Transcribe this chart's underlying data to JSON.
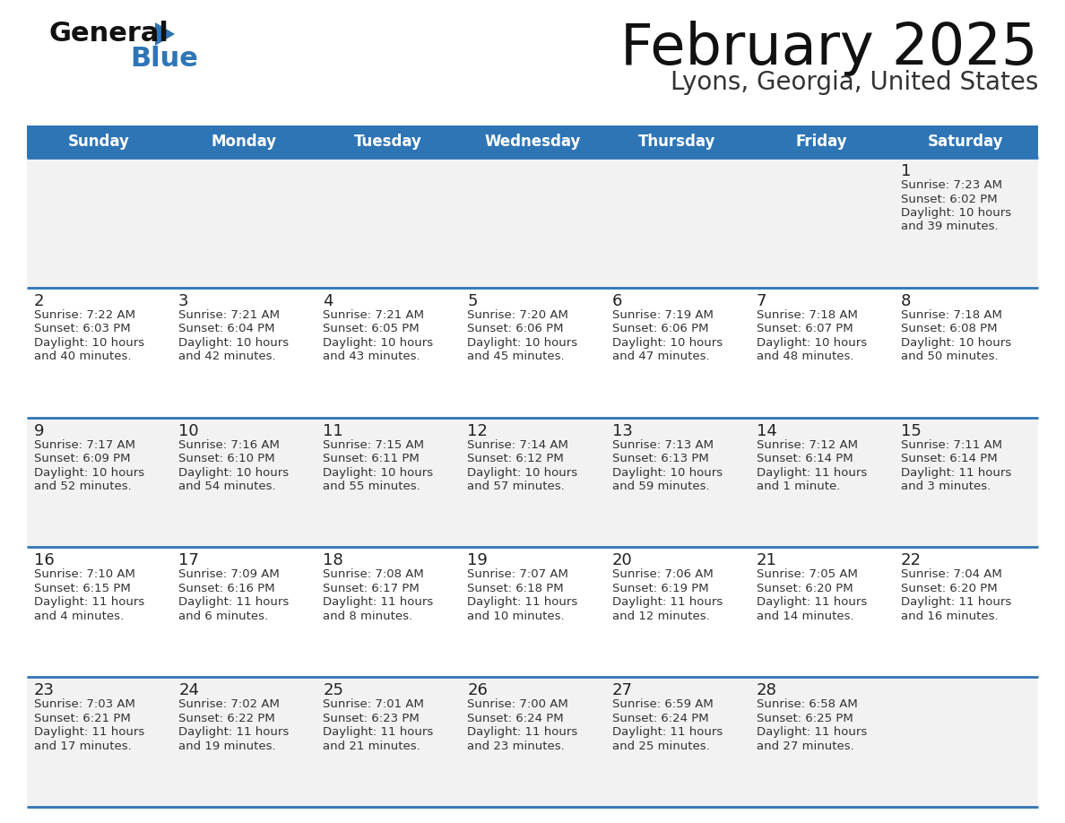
{
  "title": "February 2025",
  "subtitle": "Lyons, Georgia, United States",
  "days_of_week": [
    "Sunday",
    "Monday",
    "Tuesday",
    "Wednesday",
    "Thursday",
    "Friday",
    "Saturday"
  ],
  "header_bg": "#2e75b6",
  "header_text": "#ffffff",
  "row_bg_light": "#f2f2f2",
  "row_bg_white": "#ffffff",
  "separator_color": "#2e75b6",
  "day_number_color": "#222222",
  "cell_text_color": "#333333",
  "title_color": "#111111",
  "subtitle_color": "#333333",
  "logo_text_color": "#111111",
  "logo_blue_color": "#2e75b6",
  "calendar": [
    [
      null,
      null,
      null,
      null,
      null,
      null,
      {
        "day": "1",
        "sunrise": "7:23 AM",
        "sunset": "6:02 PM",
        "daylight_line1": "Daylight: 10 hours",
        "daylight_line2": "and 39 minutes."
      }
    ],
    [
      {
        "day": "2",
        "sunrise": "7:22 AM",
        "sunset": "6:03 PM",
        "daylight_line1": "Daylight: 10 hours",
        "daylight_line2": "and 40 minutes."
      },
      {
        "day": "3",
        "sunrise": "7:21 AM",
        "sunset": "6:04 PM",
        "daylight_line1": "Daylight: 10 hours",
        "daylight_line2": "and 42 minutes."
      },
      {
        "day": "4",
        "sunrise": "7:21 AM",
        "sunset": "6:05 PM",
        "daylight_line1": "Daylight: 10 hours",
        "daylight_line2": "and 43 minutes."
      },
      {
        "day": "5",
        "sunrise": "7:20 AM",
        "sunset": "6:06 PM",
        "daylight_line1": "Daylight: 10 hours",
        "daylight_line2": "and 45 minutes."
      },
      {
        "day": "6",
        "sunrise": "7:19 AM",
        "sunset": "6:06 PM",
        "daylight_line1": "Daylight: 10 hours",
        "daylight_line2": "and 47 minutes."
      },
      {
        "day": "7",
        "sunrise": "7:18 AM",
        "sunset": "6:07 PM",
        "daylight_line1": "Daylight: 10 hours",
        "daylight_line2": "and 48 minutes."
      },
      {
        "day": "8",
        "sunrise": "7:18 AM",
        "sunset": "6:08 PM",
        "daylight_line1": "Daylight: 10 hours",
        "daylight_line2": "and 50 minutes."
      }
    ],
    [
      {
        "day": "9",
        "sunrise": "7:17 AM",
        "sunset": "6:09 PM",
        "daylight_line1": "Daylight: 10 hours",
        "daylight_line2": "and 52 minutes."
      },
      {
        "day": "10",
        "sunrise": "7:16 AM",
        "sunset": "6:10 PM",
        "daylight_line1": "Daylight: 10 hours",
        "daylight_line2": "and 54 minutes."
      },
      {
        "day": "11",
        "sunrise": "7:15 AM",
        "sunset": "6:11 PM",
        "daylight_line1": "Daylight: 10 hours",
        "daylight_line2": "and 55 minutes."
      },
      {
        "day": "12",
        "sunrise": "7:14 AM",
        "sunset": "6:12 PM",
        "daylight_line1": "Daylight: 10 hours",
        "daylight_line2": "and 57 minutes."
      },
      {
        "day": "13",
        "sunrise": "7:13 AM",
        "sunset": "6:13 PM",
        "daylight_line1": "Daylight: 10 hours",
        "daylight_line2": "and 59 minutes."
      },
      {
        "day": "14",
        "sunrise": "7:12 AM",
        "sunset": "6:14 PM",
        "daylight_line1": "Daylight: 11 hours",
        "daylight_line2": "and 1 minute."
      },
      {
        "day": "15",
        "sunrise": "7:11 AM",
        "sunset": "6:14 PM",
        "daylight_line1": "Daylight: 11 hours",
        "daylight_line2": "and 3 minutes."
      }
    ],
    [
      {
        "day": "16",
        "sunrise": "7:10 AM",
        "sunset": "6:15 PM",
        "daylight_line1": "Daylight: 11 hours",
        "daylight_line2": "and 4 minutes."
      },
      {
        "day": "17",
        "sunrise": "7:09 AM",
        "sunset": "6:16 PM",
        "daylight_line1": "Daylight: 11 hours",
        "daylight_line2": "and 6 minutes."
      },
      {
        "day": "18",
        "sunrise": "7:08 AM",
        "sunset": "6:17 PM",
        "daylight_line1": "Daylight: 11 hours",
        "daylight_line2": "and 8 minutes."
      },
      {
        "day": "19",
        "sunrise": "7:07 AM",
        "sunset": "6:18 PM",
        "daylight_line1": "Daylight: 11 hours",
        "daylight_line2": "and 10 minutes."
      },
      {
        "day": "20",
        "sunrise": "7:06 AM",
        "sunset": "6:19 PM",
        "daylight_line1": "Daylight: 11 hours",
        "daylight_line2": "and 12 minutes."
      },
      {
        "day": "21",
        "sunrise": "7:05 AM",
        "sunset": "6:20 PM",
        "daylight_line1": "Daylight: 11 hours",
        "daylight_line2": "and 14 minutes."
      },
      {
        "day": "22",
        "sunrise": "7:04 AM",
        "sunset": "6:20 PM",
        "daylight_line1": "Daylight: 11 hours",
        "daylight_line2": "and 16 minutes."
      }
    ],
    [
      {
        "day": "23",
        "sunrise": "7:03 AM",
        "sunset": "6:21 PM",
        "daylight_line1": "Daylight: 11 hours",
        "daylight_line2": "and 17 minutes."
      },
      {
        "day": "24",
        "sunrise": "7:02 AM",
        "sunset": "6:22 PM",
        "daylight_line1": "Daylight: 11 hours",
        "daylight_line2": "and 19 minutes."
      },
      {
        "day": "25",
        "sunrise": "7:01 AM",
        "sunset": "6:23 PM",
        "daylight_line1": "Daylight: 11 hours",
        "daylight_line2": "and 21 minutes."
      },
      {
        "day": "26",
        "sunrise": "7:00 AM",
        "sunset": "6:24 PM",
        "daylight_line1": "Daylight: 11 hours",
        "daylight_line2": "and 23 minutes."
      },
      {
        "day": "27",
        "sunrise": "6:59 AM",
        "sunset": "6:24 PM",
        "daylight_line1": "Daylight: 11 hours",
        "daylight_line2": "and 25 minutes."
      },
      {
        "day": "28",
        "sunrise": "6:58 AM",
        "sunset": "6:25 PM",
        "daylight_line1": "Daylight: 11 hours",
        "daylight_line2": "and 27 minutes."
      },
      null
    ]
  ]
}
